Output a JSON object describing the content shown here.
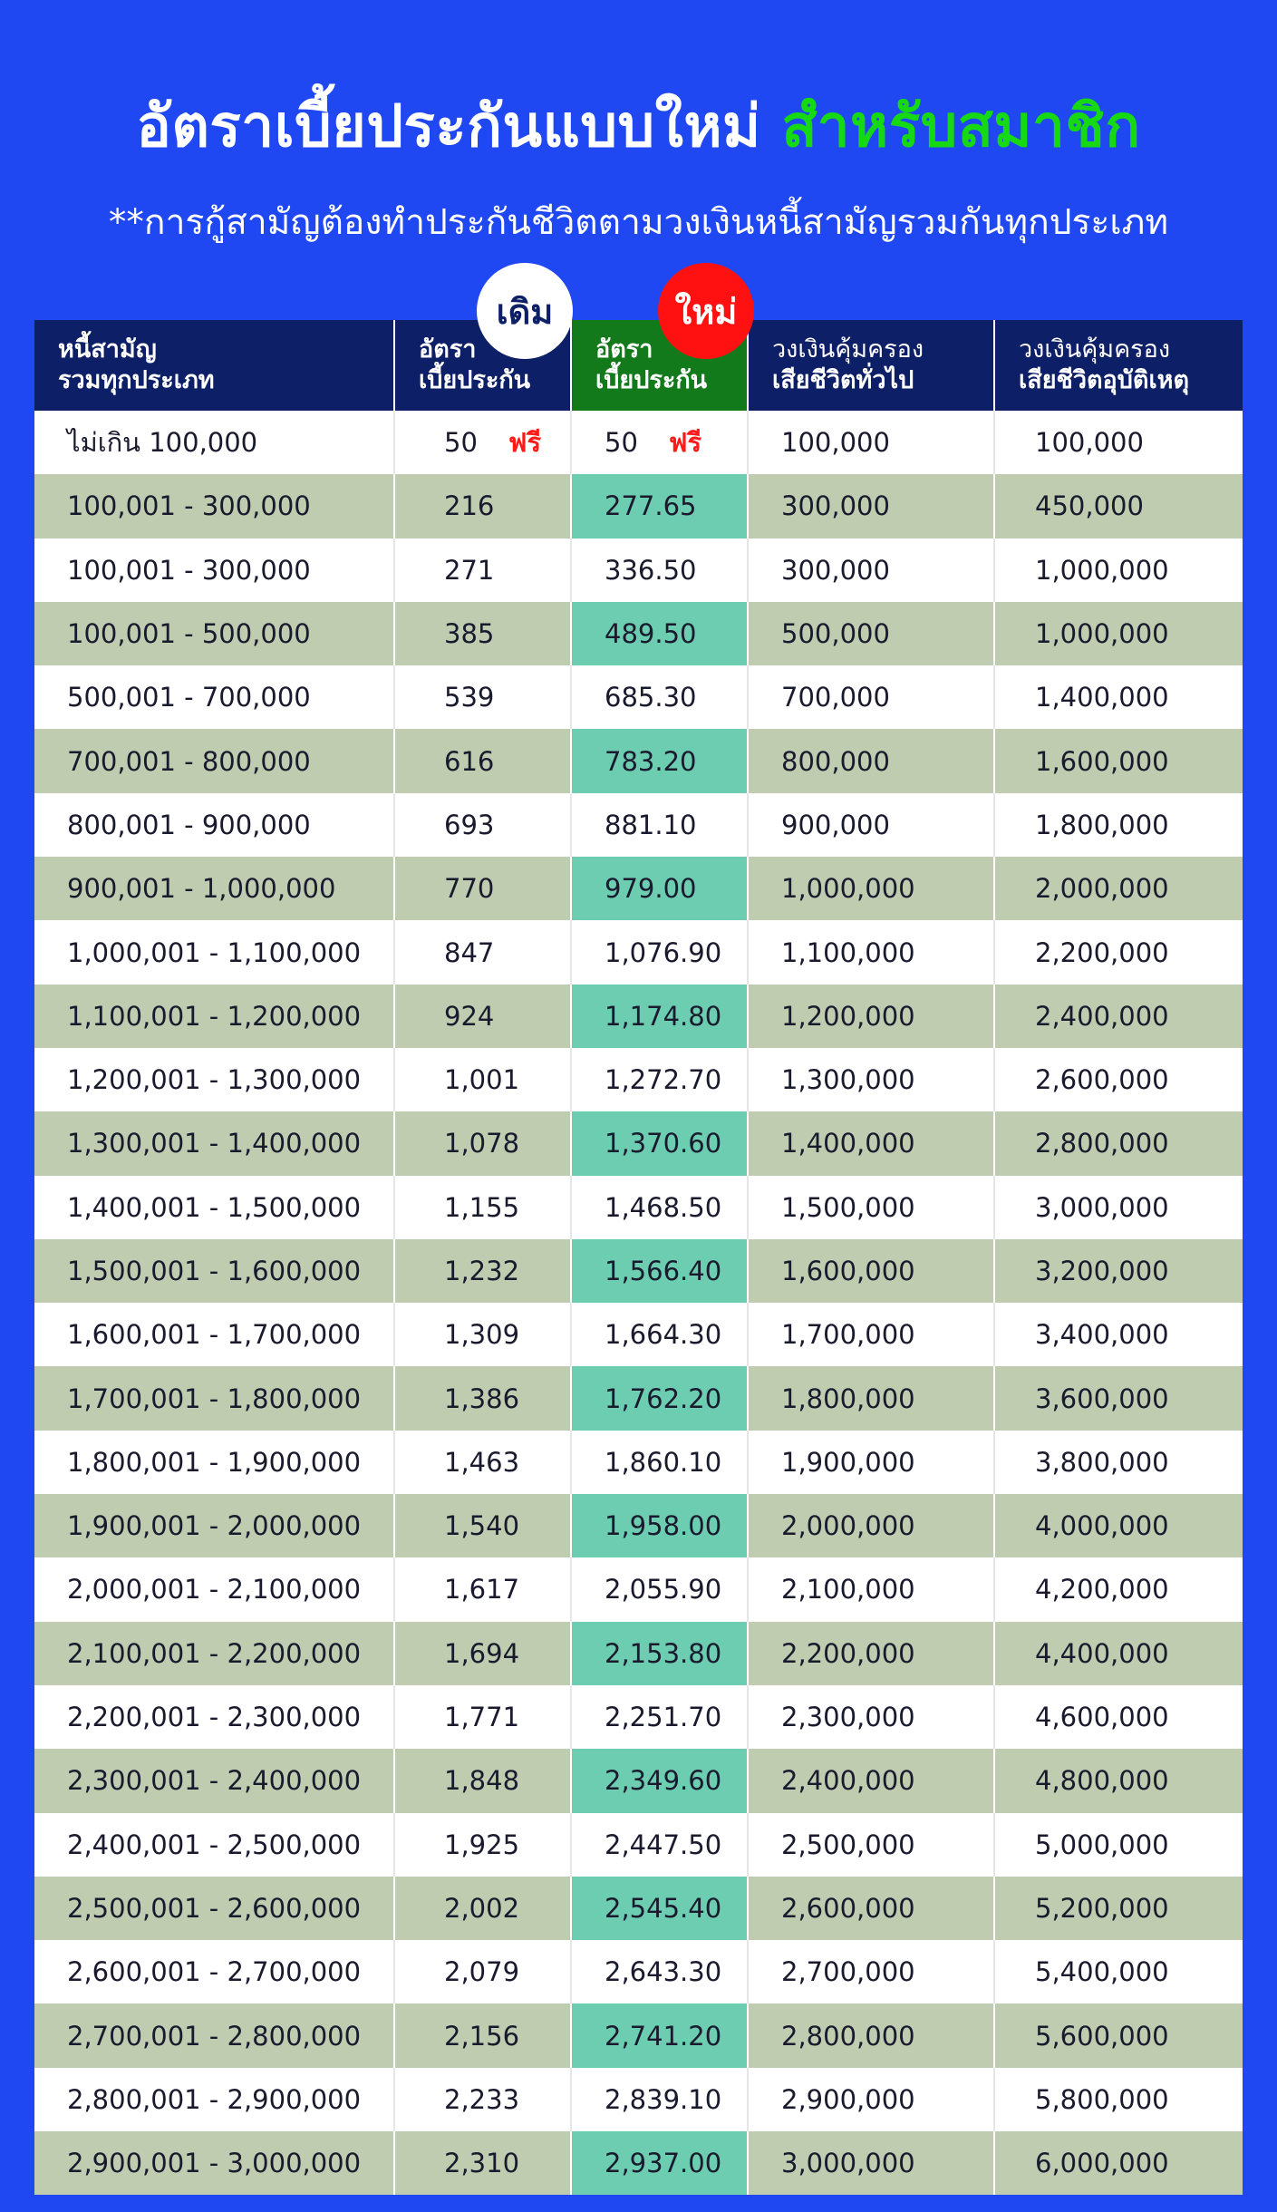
{
  "title": {
    "main": "อัตราเบี้ยประกันแบบใหม่ ",
    "accent": "สำหรับสมาชิก"
  },
  "subtitle": "**การกู้สามัญต้องทำประกันชีวิตตามวงเงินหนี้สามัญรวมกันทุกประเภท",
  "badges": {
    "old": "เดิม",
    "new": "ใหม่"
  },
  "colors": {
    "background": "#1f48f2",
    "header": "#0d1f66",
    "accent_green": "#16d914",
    "new_header": "#137a1b",
    "row_alt": "#bfccb0",
    "new_cell_alt": "#6ccdb0",
    "free_red": "#ff1a1a"
  },
  "table": {
    "headers": [
      {
        "l1": "หนี้สามัญ",
        "l2": "รวมทุกประเภท"
      },
      {
        "l1": "อัตรา",
        "l2": "เบี้ยประกัน"
      },
      {
        "l1": "อัตรา",
        "l2": "เบี้ยประกัน"
      },
      {
        "l1": "วงเงินคุ้มครอง",
        "l2": "เสียชีวิตทั่วไป"
      },
      {
        "l1": "วงเงินคุ้มครอง",
        "l2": "เสียชีวิตอุบัติเหตุ"
      }
    ],
    "free_label": "ฟรี",
    "rows": [
      [
        "ไม่เกิน 100,000",
        "50",
        "50",
        "100,000",
        "100,000"
      ],
      [
        "100,001 - 300,000",
        "216",
        "277.65",
        "300,000",
        "450,000"
      ],
      [
        "100,001 - 300,000",
        "271",
        "336.50",
        "300,000",
        "1,000,000"
      ],
      [
        "100,001 - 500,000",
        "385",
        "489.50",
        "500,000",
        "1,000,000"
      ],
      [
        "500,001 - 700,000",
        "539",
        "685.30",
        "700,000",
        "1,400,000"
      ],
      [
        "700,001 - 800,000",
        "616",
        "783.20",
        "800,000",
        "1,600,000"
      ],
      [
        "800,001 - 900,000",
        "693",
        "881.10",
        "900,000",
        "1,800,000"
      ],
      [
        "900,001 -  1,000,000",
        "770",
        "979.00",
        "1,000,000",
        "2,000,000"
      ],
      [
        "1,000,001 - 1,100,000",
        "847",
        "1,076.90",
        "1,100,000",
        "2,200,000"
      ],
      [
        "1,100,001 - 1,200,000",
        "924",
        "1,174.80",
        "1,200,000",
        "2,400,000"
      ],
      [
        "1,200,001 - 1,300,000",
        "1,001",
        "1,272.70",
        "1,300,000",
        "2,600,000"
      ],
      [
        "1,300,001 - 1,400,000",
        "1,078",
        "1,370.60",
        "1,400,000",
        "2,800,000"
      ],
      [
        "1,400,001 - 1,500,000",
        "1,155",
        "1,468.50",
        "1,500,000",
        "3,000,000"
      ],
      [
        "1,500,001 - 1,600,000",
        "1,232",
        "1,566.40",
        "1,600,000",
        "3,200,000"
      ],
      [
        "1,600,001 - 1,700,000",
        "1,309",
        "1,664.30",
        "1,700,000",
        "3,400,000"
      ],
      [
        "1,700,001 - 1,800,000",
        "1,386",
        "1,762.20",
        "1,800,000",
        "3,600,000"
      ],
      [
        "1,800,001 - 1,900,000",
        "1,463",
        "1,860.10",
        "1,900,000",
        "3,800,000"
      ],
      [
        "1,900,001 - 2,000,000",
        "1,540",
        "1,958.00",
        "2,000,000",
        "4,000,000"
      ],
      [
        "2,000,001 - 2,100,000",
        "1,617",
        "2,055.90",
        "2,100,000",
        "4,200,000"
      ],
      [
        "2,100,001 - 2,200,000",
        "1,694",
        "2,153.80",
        "2,200,000",
        "4,400,000"
      ],
      [
        "2,200,001 - 2,300,000",
        "1,771",
        "2,251.70",
        "2,300,000",
        "4,600,000"
      ],
      [
        "2,300,001 - 2,400,000",
        "1,848",
        "2,349.60",
        "2,400,000",
        "4,800,000"
      ],
      [
        "2,400,001 - 2,500,000",
        "1,925",
        "2,447.50",
        "2,500,000",
        "5,000,000"
      ],
      [
        "2,500,001 - 2,600,000",
        "2,002",
        "2,545.40",
        "2,600,000",
        "5,200,000"
      ],
      [
        "2,600,001 - 2,700,000",
        "2,079",
        "2,643.30",
        "2,700,000",
        "5,400,000"
      ],
      [
        "2,700,001 - 2,800,000",
        "2,156",
        "2,741.20",
        "2,800,000",
        "5,600,000"
      ],
      [
        "2,800,001 - 2,900,000",
        "2,233",
        "2,839.10",
        "2,900,000",
        "5,800,000"
      ],
      [
        "2,900,001 - 3,000,000",
        "2,310",
        "2,937.00",
        "3,000,000",
        "6,000,000"
      ]
    ]
  }
}
